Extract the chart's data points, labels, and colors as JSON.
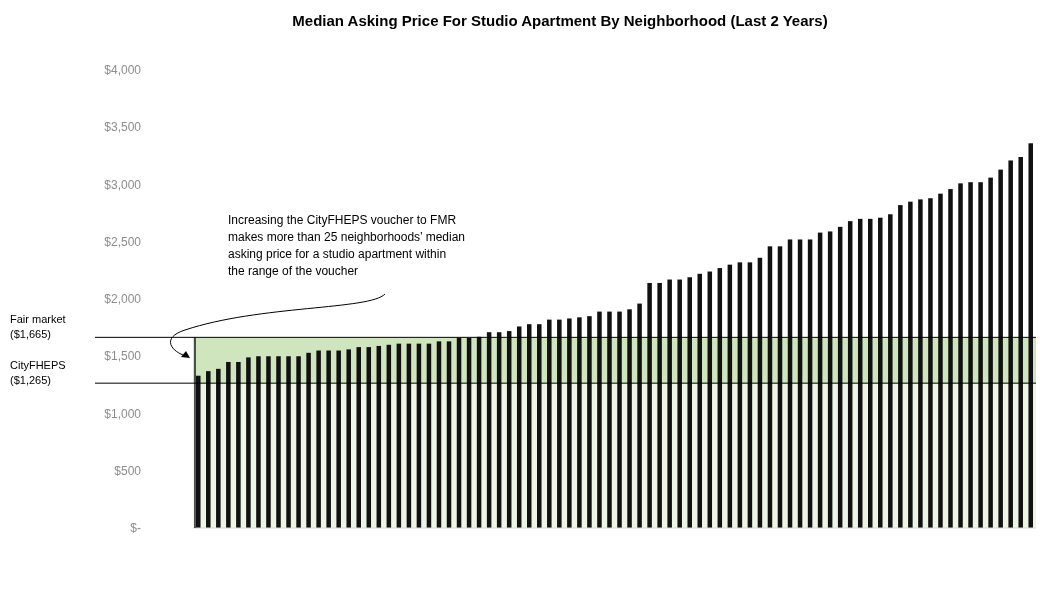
{
  "chart_data": {
    "type": "bar",
    "title": "Median Asking Price For Studio Apartment By Neighborhood (Last 2 Years)",
    "categories": [
      null,
      null,
      null,
      null,
      null,
      null,
      null,
      null,
      null,
      null,
      null,
      null,
      null,
      null,
      null,
      null,
      null,
      null,
      null,
      null,
      null,
      null,
      null,
      null,
      null,
      null,
      null,
      null,
      null,
      null,
      null,
      null,
      null,
      null,
      null,
      null,
      null,
      null,
      null,
      null,
      null,
      null,
      null,
      null,
      null,
      null,
      null,
      null,
      null,
      null,
      null,
      null,
      null,
      null,
      null,
      null,
      null,
      null,
      null,
      null,
      null,
      null,
      null,
      null,
      null,
      null,
      null,
      null,
      null,
      null,
      null,
      null,
      null,
      null,
      null,
      null,
      null,
      null,
      null,
      null,
      null,
      null,
      null,
      null
    ],
    "values": [
      1330,
      1370,
      1390,
      1450,
      1450,
      1490,
      1500,
      1500,
      1500,
      1500,
      1500,
      1530,
      1550,
      1550,
      1550,
      1560,
      1580,
      1580,
      1590,
      1600,
      1610,
      1610,
      1610,
      1610,
      1630,
      1630,
      1660,
      1660,
      1670,
      1710,
      1710,
      1720,
      1760,
      1780,
      1780,
      1820,
      1820,
      1830,
      1840,
      1850,
      1890,
      1890,
      1890,
      1910,
      1960,
      2140,
      2140,
      2170,
      2170,
      2190,
      2220,
      2240,
      2270,
      2300,
      2320,
      2320,
      2360,
      2460,
      2460,
      2520,
      2520,
      2520,
      2580,
      2590,
      2630,
      2680,
      2700,
      2700,
      2710,
      2740,
      2820,
      2850,
      2870,
      2880,
      2920,
      2960,
      3010,
      3020,
      3020,
      3060,
      3130,
      3210,
      3240,
      3360
    ],
    "color": "#111111",
    "ylim": [
      0,
      4000
    ],
    "yticks": [
      {
        "value": 0,
        "label": "$-"
      },
      {
        "value": 500,
        "label": "$500"
      },
      {
        "value": 1000,
        "label": "$1,000"
      },
      {
        "value": 1500,
        "label": "$1,500"
      },
      {
        "value": 2000,
        "label": "$2,000"
      },
      {
        "value": 2500,
        "label": "$2,500"
      },
      {
        "value": 3000,
        "label": "$3,000"
      },
      {
        "value": 3500,
        "label": "$3,500"
      },
      {
        "value": 4000,
        "label": "$4,000"
      }
    ],
    "bands": [
      {
        "axis": "y",
        "from": 0,
        "to": 1265,
        "color": "#eef5e6"
      },
      {
        "axis": "y",
        "from": 1265,
        "to": 1665,
        "color": "#cfe5bd"
      }
    ],
    "ref_lines": [
      {
        "axis": "y",
        "value": 1665,
        "label": "Fair market\n($1,665)",
        "color": "#000000"
      },
      {
        "axis": "y",
        "value": 1265,
        "label": "CityFHEPS\n($1,265)",
        "color": "#000000"
      }
    ],
    "annotations": [
      "Increasing the CityFHEPS voucher to FMR\nmakes more than 25 neighborhoods’ median\nasking price for a studio apartment within\nthe range of the voucher"
    ]
  }
}
